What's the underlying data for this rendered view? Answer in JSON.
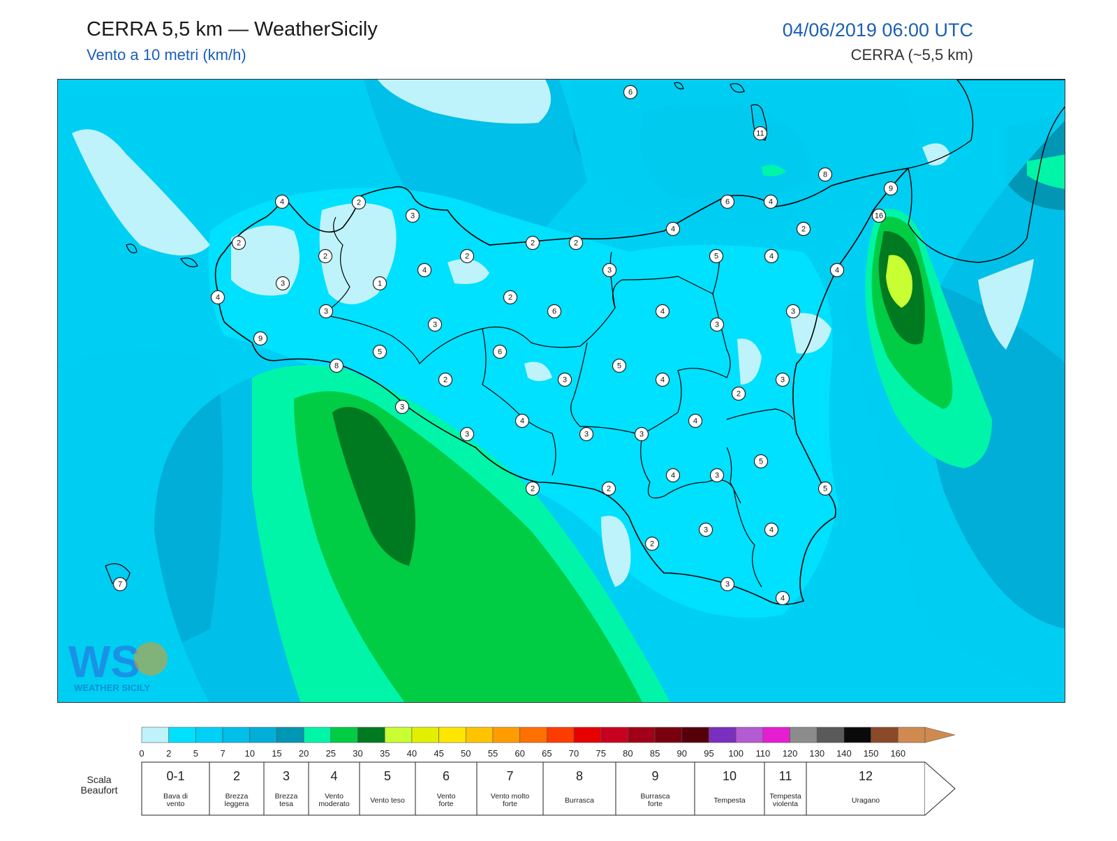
{
  "header": {
    "title": "CERRA 5,5 km — WeatherSicily",
    "subtitle": "Vento a 10 metri (km/h)",
    "datetime": "04/06/2019 06:00 UTC",
    "model": "CERRA (~5,5 km)"
  },
  "logo": {
    "initials": "WS",
    "text": "WEATHER SICILY"
  },
  "colors": {
    "ramp": [
      "#bff3fb",
      "#00e0ff",
      "#00d0f5",
      "#00bfe8",
      "#00aed8",
      "#0096b4",
      "#00f5a8",
      "#00cc44",
      "#007a20",
      "#c8ff32",
      "#e2f000",
      "#ffe600",
      "#ffc400",
      "#ff9c00",
      "#ff7000",
      "#ff3c00",
      "#e60000",
      "#c80020",
      "#a00018",
      "#7a0010",
      "#550008",
      "#7b2fbe",
      "#b45ad2",
      "#e61ed2",
      "#8c8c8c",
      "#5a5a5a",
      "#0a0a0a",
      "#8a4a2a",
      "#d08a50"
    ],
    "coast": "#000000",
    "background": "#ffffff"
  },
  "scale": {
    "ticks": [
      "0",
      "2",
      "5",
      "7",
      "10",
      "15",
      "20",
      "25",
      "30",
      "35",
      "40",
      "45",
      "50",
      "55",
      "60",
      "65",
      "70",
      "75",
      "80",
      "85",
      "90",
      "95",
      "100",
      "110",
      "120",
      "130",
      "140",
      "150",
      "160"
    ]
  },
  "beaufort": {
    "label": "Scala\nBeaufort",
    "classes": [
      {
        "num": "0-1",
        "desc": "Bava di\nvento"
      },
      {
        "num": "2",
        "desc": "Brezza\nleggera"
      },
      {
        "num": "3",
        "desc": "Brezza\ntesa"
      },
      {
        "num": "4",
        "desc": "Vento\nmoderato"
      },
      {
        "num": "5",
        "desc": "Vento teso"
      },
      {
        "num": "6",
        "desc": "Vento\nforte"
      },
      {
        "num": "7",
        "desc": "Vento molto\nforte"
      },
      {
        "num": "8",
        "desc": "Burrasca"
      },
      {
        "num": "9",
        "desc": "Burrasca\nforte"
      },
      {
        "num": "10",
        "desc": "Tempesta"
      },
      {
        "num": "11",
        "desc": "Tempesta\nviolenta"
      },
      {
        "num": "12",
        "desc": "Uragano"
      }
    ]
  },
  "stations": [
    "6",
    "11",
    "8",
    "9",
    "16",
    "4",
    "2",
    "3",
    "2",
    "2",
    "3",
    "4",
    "1",
    "2",
    "3",
    "4",
    "2",
    "2",
    "2",
    "6",
    "3",
    "4",
    "6",
    "4",
    "5",
    "7",
    "5",
    "2",
    "3",
    "3",
    "4",
    "3",
    "5",
    "5",
    "2",
    "9",
    "8",
    "3",
    "3",
    "4",
    "6",
    "3",
    "5",
    "2",
    "3",
    "4",
    "4",
    "2",
    "3",
    "3",
    "3",
    "4",
    "5",
    "3",
    "4",
    "4",
    "2",
    "2",
    "3",
    "4",
    "5",
    "4",
    "2",
    "7"
  ]
}
